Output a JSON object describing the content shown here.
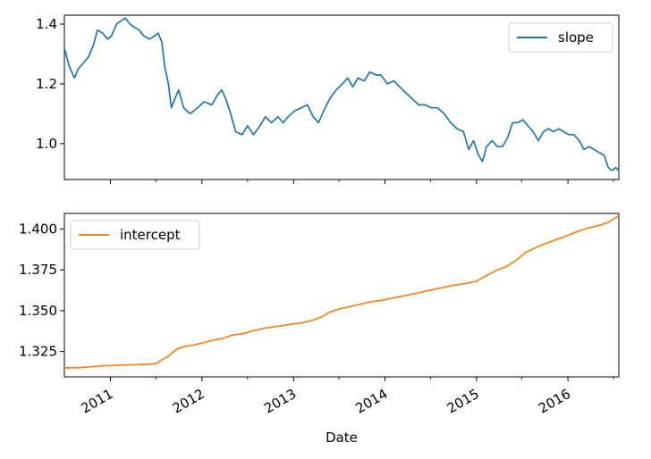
{
  "chart_data": [
    {
      "type": "line",
      "series": [
        {
          "name": "slope",
          "color": "#1f77b4",
          "points": [
            [
              "2010-07-01",
              1.32
            ],
            [
              "2010-07-20",
              1.26
            ],
            [
              "2010-08-10",
              1.22
            ],
            [
              "2010-08-25",
              1.25
            ],
            [
              "2010-09-15",
              1.27
            ],
            [
              "2010-10-05",
              1.29
            ],
            [
              "2010-10-25",
              1.33
            ],
            [
              "2010-11-10",
              1.38
            ],
            [
              "2010-12-01",
              1.37
            ],
            [
              "2010-12-20",
              1.35
            ],
            [
              "2011-01-05",
              1.36
            ],
            [
              "2011-01-25",
              1.4
            ],
            [
              "2011-02-10",
              1.41
            ],
            [
              "2011-03-01",
              1.42
            ],
            [
              "2011-03-20",
              1.4
            ],
            [
              "2011-04-05",
              1.39
            ],
            [
              "2011-04-25",
              1.38
            ],
            [
              "2011-05-15",
              1.36
            ],
            [
              "2011-06-05",
              1.35
            ],
            [
              "2011-06-25",
              1.36
            ],
            [
              "2011-07-10",
              1.37
            ],
            [
              "2011-07-25",
              1.34
            ],
            [
              "2011-08-05",
              1.26
            ],
            [
              "2011-08-20",
              1.2
            ],
            [
              "2011-09-01",
              1.12
            ],
            [
              "2011-09-15",
              1.15
            ],
            [
              "2011-09-30",
              1.18
            ],
            [
              "2011-10-20",
              1.12
            ],
            [
              "2011-11-15",
              1.1
            ],
            [
              "2011-12-15",
              1.12
            ],
            [
              "2012-01-10",
              1.14
            ],
            [
              "2012-02-10",
              1.13
            ],
            [
              "2012-03-01",
              1.16
            ],
            [
              "2012-03-20",
              1.18
            ],
            [
              "2012-04-05",
              1.15
            ],
            [
              "2012-04-25",
              1.1
            ],
            [
              "2012-05-15",
              1.04
            ],
            [
              "2012-06-10",
              1.03
            ],
            [
              "2012-07-01",
              1.06
            ],
            [
              "2012-07-25",
              1.03
            ],
            [
              "2012-08-20",
              1.06
            ],
            [
              "2012-09-10",
              1.09
            ],
            [
              "2012-10-05",
              1.07
            ],
            [
              "2012-10-30",
              1.09
            ],
            [
              "2012-11-20",
              1.07
            ],
            [
              "2012-12-10",
              1.09
            ],
            [
              "2013-01-05",
              1.11
            ],
            [
              "2013-02-01",
              1.12
            ],
            [
              "2013-02-25",
              1.13
            ],
            [
              "2013-03-20",
              1.09
            ],
            [
              "2013-04-10",
              1.07
            ],
            [
              "2013-05-01",
              1.11
            ],
            [
              "2013-05-25",
              1.15
            ],
            [
              "2013-06-20",
              1.18
            ],
            [
              "2013-07-15",
              1.2
            ],
            [
              "2013-08-05",
              1.22
            ],
            [
              "2013-08-25",
              1.19
            ],
            [
              "2013-09-15",
              1.22
            ],
            [
              "2013-10-10",
              1.21
            ],
            [
              "2013-11-01",
              1.24
            ],
            [
              "2013-11-25",
              1.23
            ],
            [
              "2013-12-15",
              1.23
            ],
            [
              "2014-01-10",
              1.2
            ],
            [
              "2014-02-05",
              1.21
            ],
            [
              "2014-03-01",
              1.19
            ],
            [
              "2014-03-25",
              1.17
            ],
            [
              "2014-04-20",
              1.15
            ],
            [
              "2014-05-15",
              1.13
            ],
            [
              "2014-06-10",
              1.13
            ],
            [
              "2014-07-05",
              1.12
            ],
            [
              "2014-07-30",
              1.12
            ],
            [
              "2014-08-25",
              1.1
            ],
            [
              "2014-09-20",
              1.07
            ],
            [
              "2014-10-15",
              1.05
            ],
            [
              "2014-11-10",
              1.04
            ],
            [
              "2014-12-01",
              0.98
            ],
            [
              "2014-12-20",
              1.01
            ],
            [
              "2015-01-10",
              0.96
            ],
            [
              "2015-01-25",
              0.94
            ],
            [
              "2015-02-10",
              0.99
            ],
            [
              "2015-03-05",
              1.01
            ],
            [
              "2015-03-25",
              0.99
            ],
            [
              "2015-04-15",
              0.99
            ],
            [
              "2015-05-05",
              1.02
            ],
            [
              "2015-05-25",
              1.07
            ],
            [
              "2015-06-15",
              1.07
            ],
            [
              "2015-07-05",
              1.08
            ],
            [
              "2015-07-25",
              1.06
            ],
            [
              "2015-08-15",
              1.04
            ],
            [
              "2015-09-05",
              1.01
            ],
            [
              "2015-09-25",
              1.04
            ],
            [
              "2015-10-15",
              1.05
            ],
            [
              "2015-11-05",
              1.04
            ],
            [
              "2015-11-25",
              1.05
            ],
            [
              "2015-12-15",
              1.04
            ],
            [
              "2016-01-05",
              1.03
            ],
            [
              "2016-01-25",
              1.03
            ],
            [
              "2016-02-15",
              1.01
            ],
            [
              "2016-03-05",
              0.98
            ],
            [
              "2016-03-25",
              0.99
            ],
            [
              "2016-04-15",
              0.98
            ],
            [
              "2016-05-05",
              0.97
            ],
            [
              "2016-05-25",
              0.96
            ],
            [
              "2016-06-10",
              0.92
            ],
            [
              "2016-06-25",
              0.91
            ],
            [
              "2016-07-10",
              0.92
            ],
            [
              "2016-07-22",
              0.91
            ]
          ]
        }
      ],
      "legend": "top-right",
      "ylim": [
        0.88,
        1.43
      ],
      "yticks": [
        "1.0",
        "1.2",
        "1.4"
      ]
    },
    {
      "type": "line",
      "series": [
        {
          "name": "intercept",
          "color": "#ff7f0e",
          "points": [
            [
              "2010-07-01",
              1.315
            ],
            [
              "2010-08-01",
              1.315
            ],
            [
              "2010-09-01",
              1.3152
            ],
            [
              "2010-10-15",
              1.3157
            ],
            [
              "2010-12-01",
              1.3162
            ],
            [
              "2011-01-15",
              1.3165
            ],
            [
              "2011-03-01",
              1.3168
            ],
            [
              "2011-04-15",
              1.317
            ],
            [
              "2011-05-31",
              1.3172
            ],
            [
              "2011-06-15",
              1.3173
            ],
            [
              "2011-07-05",
              1.3178
            ],
            [
              "2011-07-25",
              1.32
            ],
            [
              "2011-08-20",
              1.322
            ],
            [
              "2011-09-10",
              1.325
            ],
            [
              "2011-09-30",
              1.327
            ],
            [
              "2011-10-25",
              1.328
            ],
            [
              "2011-11-30",
              1.329
            ],
            [
              "2012-01-10",
              1.3305
            ],
            [
              "2012-02-15",
              1.332
            ],
            [
              "2012-03-25",
              1.333
            ],
            [
              "2012-05-01",
              1.335
            ],
            [
              "2012-06-15",
              1.336
            ],
            [
              "2012-08-01",
              1.338
            ],
            [
              "2012-09-15",
              1.3395
            ],
            [
              "2012-11-01",
              1.3405
            ],
            [
              "2012-12-15",
              1.3415
            ],
            [
              "2013-01-31",
              1.3425
            ],
            [
              "2013-03-15",
              1.344
            ],
            [
              "2013-04-20",
              1.346
            ],
            [
              "2013-05-25",
              1.349
            ],
            [
              "2013-07-01",
              1.351
            ],
            [
              "2013-08-15",
              1.3525
            ],
            [
              "2013-09-25",
              1.354
            ],
            [
              "2013-11-10",
              1.3555
            ],
            [
              "2013-12-25",
              1.3565
            ],
            [
              "2014-02-10",
              1.358
            ],
            [
              "2014-03-31",
              1.3595
            ],
            [
              "2014-05-15",
              1.361
            ],
            [
              "2014-06-30",
              1.3625
            ],
            [
              "2014-08-15",
              1.364
            ],
            [
              "2014-09-30",
              1.3655
            ],
            [
              "2014-11-15",
              1.3665
            ],
            [
              "2014-12-31",
              1.368
            ],
            [
              "2015-02-10",
              1.3715
            ],
            [
              "2015-03-20",
              1.3745
            ],
            [
              "2015-04-30",
              1.377
            ],
            [
              "2015-06-10",
              1.381
            ],
            [
              "2015-07-15",
              1.3855
            ],
            [
              "2015-08-25",
              1.3885
            ],
            [
              "2015-10-01",
              1.391
            ],
            [
              "2015-11-15",
              1.3935
            ],
            [
              "2015-12-31",
              1.396
            ],
            [
              "2016-02-10",
              1.3985
            ],
            [
              "2016-03-20",
              1.4005
            ],
            [
              "2016-05-01",
              1.402
            ],
            [
              "2016-06-10",
              1.404
            ],
            [
              "2016-06-30",
              1.406
            ],
            [
              "2016-07-15",
              1.4075
            ],
            [
              "2016-07-22",
              1.408
            ]
          ]
        }
      ],
      "legend": "top-left",
      "ylim": [
        1.3095,
        1.4095
      ],
      "yticks": [
        "1.325",
        "1.350",
        "1.375",
        "1.400"
      ],
      "xlabel": "Date",
      "xticks": [
        "2011",
        "2012",
        "2013",
        "2014",
        "2015",
        "2016"
      ]
    }
  ]
}
